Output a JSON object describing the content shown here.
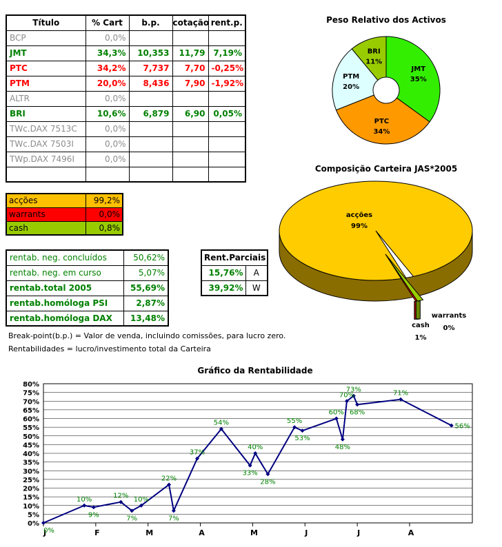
{
  "holdings": {
    "headers": [
      "Título",
      "% Cart",
      "b.p.",
      "cotação",
      "rent.p."
    ],
    "rows": [
      {
        "name": "BCP",
        "pct": "0,0%",
        "bp": "",
        "cot": "",
        "rent": "",
        "style": "gray"
      },
      {
        "name": "JMT",
        "pct": "34,3%",
        "bp": "10,353",
        "cot": "11,79",
        "rent": "7,19%",
        "style": "green"
      },
      {
        "name": "PTC",
        "pct": "34,2%",
        "bp": "7,737",
        "cot": "7,70",
        "rent": "-0,25%",
        "style": "red"
      },
      {
        "name": "PTM",
        "pct": "20,0%",
        "bp": "8,436",
        "cot": "7,90",
        "rent": "-1,92%",
        "style": "red"
      },
      {
        "name": "ALTR",
        "pct": "0,0%",
        "bp": "",
        "cot": "",
        "rent": "",
        "style": "gray"
      },
      {
        "name": "BRI",
        "pct": "10,6%",
        "bp": "6,879",
        "cot": "6,90",
        "rent": "0,05%",
        "style": "green"
      },
      {
        "name": "TWc.DAX 7513C",
        "pct": "0,0%",
        "bp": "",
        "cot": "",
        "rent": "",
        "style": "gray"
      },
      {
        "name": "TWc.DAX 7503I",
        "pct": "0,0%",
        "bp": "",
        "cot": "",
        "rent": "",
        "style": "gray"
      },
      {
        "name": "TWp.DAX 7496I",
        "pct": "0,0%",
        "bp": "",
        "cot": "",
        "rent": "",
        "style": "gray"
      },
      {
        "name": "",
        "pct": "",
        "bp": "",
        "cot": "",
        "rent": "",
        "style": "gray"
      }
    ]
  },
  "allocation": [
    {
      "label": "acções",
      "value": "99,2%",
      "color": "#ffc000"
    },
    {
      "label": "warrants",
      "value": "0,0%",
      "color": "#ff0000"
    },
    {
      "label": "cash",
      "value": "0,8%",
      "color": "#99cc00"
    }
  ],
  "returns": [
    {
      "label": "rentab. neg. concluídos",
      "value": "50,62%",
      "bold": false
    },
    {
      "label": "rentab. neg. em curso",
      "value": "5,07%",
      "bold": false
    },
    {
      "label": "rentab.total 2005",
      "value": "55,69%",
      "bold": true
    },
    {
      "label": "rentab.homóloga PSI",
      "value": "2,87%",
      "bold": true
    },
    {
      "label": "rentab.homóloga DAX",
      "value": "13,48%",
      "bold": true
    }
  ],
  "partials": {
    "title": "Rent.Parciais",
    "rows": [
      {
        "value": "15,76%",
        "code": "A"
      },
      {
        "value": "39,92%",
        "code": "W"
      }
    ]
  },
  "notes": {
    "line1": "Break-point(b.p.) = Valor de venda, incluindo comissões, para lucro zero.",
    "line2": "Rentabilidades = lucro/investimento total da Carteira"
  },
  "chart_data": [
    {
      "type": "pie",
      "title": "Peso Relativo dos Activos",
      "labels": [
        "JMT",
        "PTC",
        "PTM",
        "BRI"
      ],
      "values": [
        35,
        34,
        20,
        11
      ],
      "value_labels": [
        "35%",
        "34%",
        "20%",
        "11%"
      ],
      "colors": [
        "#33ee00",
        "#ff9900",
        "#ddffff",
        "#99cc00"
      ],
      "style": "doughnut"
    },
    {
      "type": "pie",
      "title": "Composição Carteira JAS*2005",
      "labels": [
        "acções",
        "warrants",
        "cash"
      ],
      "values": [
        99,
        0,
        1
      ],
      "value_labels": [
        "99%",
        "0%",
        "1%"
      ],
      "colors": [
        "#ffcc00",
        "#ff0000",
        "#99cc00"
      ],
      "style": "3d"
    },
    {
      "type": "line",
      "title": "Gráfico da Rentabilidade",
      "xlabel": "",
      "ylabel": "",
      "ylim": [
        0,
        80
      ],
      "y_ticks": [
        "0%",
        "5%",
        "10%",
        "15%",
        "20%",
        "25%",
        "30%",
        "35%",
        "40%",
        "45%",
        "50%",
        "55%",
        "60%",
        "65%",
        "70%",
        "75%",
        "80%"
      ],
      "month_labels": [
        "J",
        "F",
        "M",
        "A",
        "M",
        "J",
        "J",
        "A"
      ],
      "x_range": [
        0,
        8.2
      ],
      "series": [
        {
          "name": "Rentabilidade",
          "color": "#000080",
          "x": [
            0,
            0.78,
            0.96,
            1.48,
            1.69,
            1.87,
            2.4,
            2.49,
            2.94,
            3.4,
            3.95,
            4.05,
            4.29,
            4.8,
            4.95,
            5.6,
            5.72,
            5.8,
            5.93,
            6.0,
            6.83,
            7.8
          ],
          "y": [
            0,
            10,
            9,
            12,
            7,
            10,
            22,
            7,
            37,
            54,
            33,
            40,
            28,
            55,
            53,
            60,
            48,
            70,
            73,
            68,
            71,
            56
          ],
          "labels": [
            "0%",
            "10%",
            "9%",
            "12%",
            "7%",
            "10%",
            "22%",
            "7%",
            "37%",
            "54%",
            "33%",
            "40%",
            "28%",
            "55%",
            "53%",
            "60%",
            "48%",
            "70%",
            "73%",
            "68%",
            "71%",
            "56%"
          ]
        }
      ]
    }
  ]
}
